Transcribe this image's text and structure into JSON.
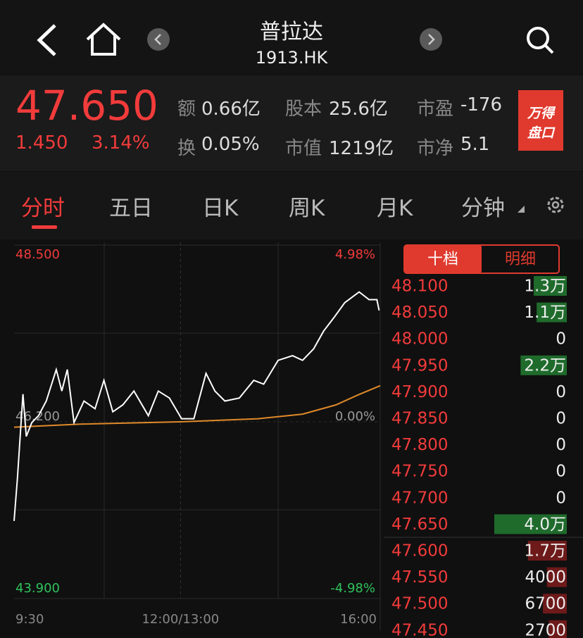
{
  "header": {
    "title": "普拉达",
    "code": "1913.HK"
  },
  "quote": {
    "price": "47.650",
    "change": "1.450",
    "change_pct": "3.14%",
    "fields": [
      {
        "label": "额",
        "value": "0.66亿"
      },
      {
        "label": "股本",
        "value": "25.6亿"
      },
      {
        "label": "市盈",
        "value": "-176"
      },
      {
        "label": "换",
        "value": "0.05%"
      },
      {
        "label": "市值",
        "value": "1219亿"
      },
      {
        "label": "市净",
        "value": "5.1"
      }
    ],
    "badge": [
      "万得",
      "盘口"
    ]
  },
  "tabs": [
    "分时",
    "五日",
    "日K",
    "周K",
    "月K",
    "分钟"
  ],
  "chart_data": {
    "type": "line",
    "xlim": [
      0,
      330
    ],
    "xticks": [
      {
        "value": 0,
        "label": "9:30"
      },
      {
        "value": 150,
        "label": "12:00/13:00"
      },
      {
        "value": 330,
        "label": "16:00"
      }
    ],
    "ylim": [
      43.9,
      48.5
    ],
    "yticks": [
      {
        "value": 48.5,
        "label": "48.500"
      },
      {
        "value": 46.2,
        "label": "46.200"
      },
      {
        "value": 43.9,
        "label": "43.900"
      }
    ],
    "y2lim": [
      -4.98,
      4.98
    ],
    "y2ticks": [
      {
        "value": 4.98,
        "label": "4.98%"
      },
      {
        "value": 0,
        "label": "0.00%"
      },
      {
        "value": -4.98,
        "label": "-4.98%"
      }
    ],
    "series": [
      {
        "color": "#ffffff",
        "x": [
          0,
          3,
          8,
          11,
          16,
          22,
          29,
          38,
          43,
          48,
          54,
          63,
          73,
          81,
          89,
          98,
          108,
          121,
          130,
          140,
          151,
          162,
          173,
          181,
          190,
          203,
          216,
          225,
          238,
          251,
          260,
          270,
          279,
          289,
          298,
          311,
          320,
          327,
          329
        ],
        "values": [
          44.91,
          45.46,
          46.56,
          46.01,
          46.19,
          46.28,
          46.47,
          46.88,
          46.6,
          46.88,
          46.19,
          46.47,
          46.37,
          46.74,
          46.33,
          46.42,
          46.6,
          46.28,
          46.6,
          46.51,
          46.24,
          46.24,
          46.83,
          46.6,
          46.47,
          46.51,
          46.74,
          46.69,
          47.0,
          47.06,
          47.0,
          47.15,
          47.38,
          47.57,
          47.75,
          47.89,
          47.79,
          47.79,
          47.65
        ]
      },
      {
        "color": "#e08a2a",
        "x": [
          0,
          60,
          150,
          220,
          260,
          290,
          310,
          330
        ],
        "values": [
          46.13,
          46.17,
          46.2,
          46.24,
          46.3,
          46.42,
          46.55,
          46.67
        ]
      }
    ]
  },
  "order_book": {
    "tabs": [
      "十档",
      "明细"
    ],
    "rows": [
      {
        "price": "48.100",
        "volume": 13000,
        "volume_label": "1.3万"
      },
      {
        "price": "48.050",
        "volume": 11000,
        "volume_label": "1.1万"
      },
      {
        "price": "48.000",
        "volume": 0
      },
      {
        "price": "47.950",
        "volume": 22000,
        "volume_label": "2.2万"
      },
      {
        "price": "47.900",
        "volume": 0
      },
      {
        "price": "47.850",
        "volume": 0
      },
      {
        "price": "47.800",
        "volume": 0
      },
      {
        "price": "47.750",
        "volume": 0
      },
      {
        "price": "47.700",
        "volume": 0
      },
      {
        "price": "47.650",
        "volume": 40000,
        "volume_label": "4.0万"
      },
      {
        "price": "47.600",
        "volume": 17000,
        "volume_label": "1.7万"
      },
      {
        "price": "47.550",
        "volume": 4000
      },
      {
        "price": "47.500",
        "volume": 6700
      },
      {
        "price": "47.450",
        "volume": 2700
      }
    ]
  }
}
